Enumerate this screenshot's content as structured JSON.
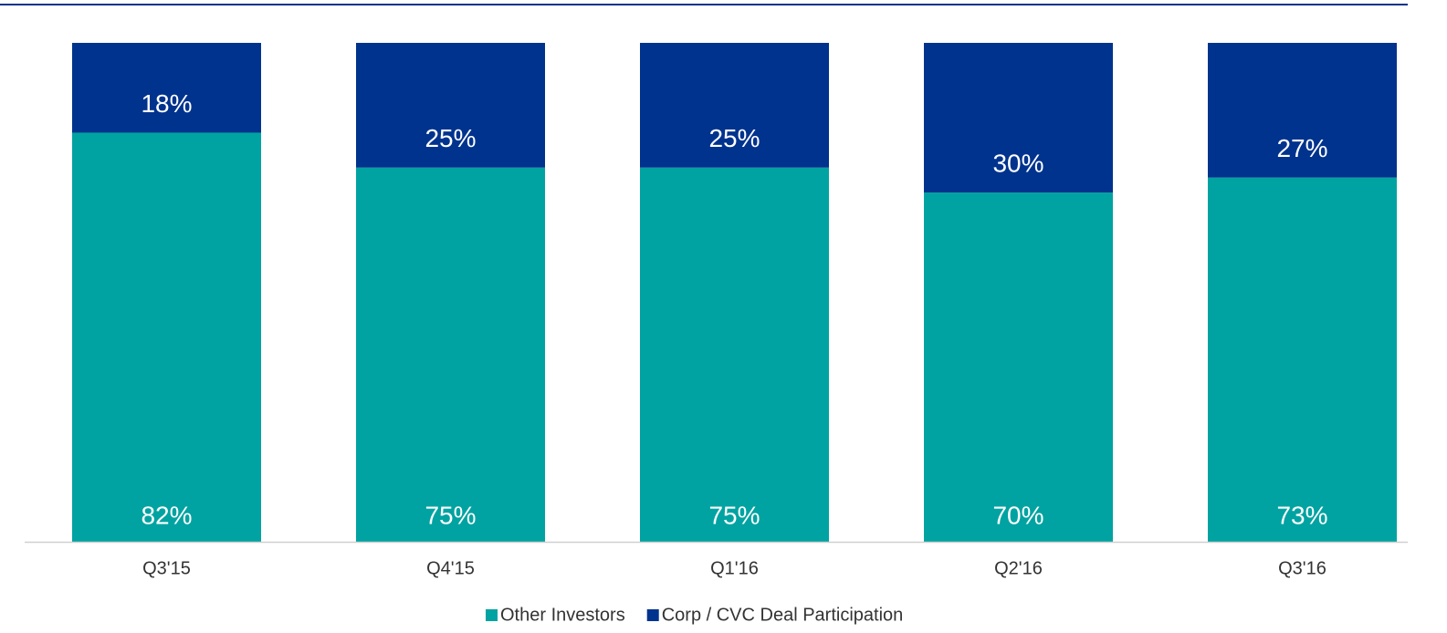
{
  "chart_data": {
    "type": "stacked_bar",
    "categories": [
      "Q3'15",
      "Q4'15",
      "Q1'16",
      "Q2'16",
      "Q3'16"
    ],
    "series": [
      {
        "name": "Other Investors",
        "color": "#00a3a1",
        "values": [
          82,
          75,
          75,
          70,
          73
        ],
        "value_labels": [
          "82%",
          "75%",
          "75%",
          "70%",
          "73%"
        ]
      },
      {
        "name": "Corp / CVC Deal Participation",
        "color": "#00338d",
        "values": [
          18,
          25,
          25,
          30,
          27
        ],
        "value_labels": [
          "18%",
          "25%",
          "25%",
          "30%",
          "27%"
        ]
      }
    ],
    "ylim": [
      0,
      100
    ],
    "legend": "bottom"
  }
}
